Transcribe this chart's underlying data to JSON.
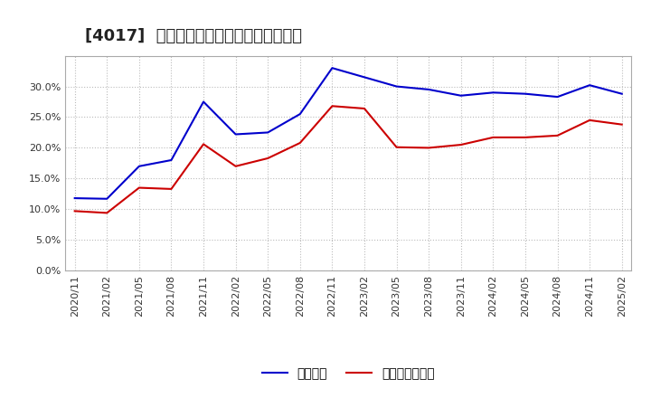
{
  "title": "[4017]  固定比率、固定長期適合率の推移",
  "x_labels": [
    "2020/11",
    "2021/02",
    "2021/05",
    "2021/08",
    "2021/11",
    "2022/02",
    "2022/05",
    "2022/08",
    "2022/11",
    "2023/02",
    "2023/05",
    "2023/08",
    "2023/11",
    "2024/02",
    "2024/05",
    "2024/08",
    "2024/11",
    "2025/02"
  ],
  "fixed_ratio": [
    11.8,
    11.7,
    17.0,
    18.0,
    27.5,
    22.2,
    22.5,
    25.5,
    33.0,
    31.5,
    30.0,
    29.5,
    28.5,
    29.0,
    28.8,
    28.3,
    30.2,
    28.8
  ],
  "fixed_long_ratio": [
    9.7,
    9.4,
    13.5,
    13.3,
    20.6,
    17.0,
    18.3,
    20.8,
    26.8,
    26.4,
    20.1,
    20.0,
    20.5,
    21.7,
    21.7,
    22.0,
    24.5,
    23.8
  ],
  "line1_color": "#0000cc",
  "line2_color": "#cc0000",
  "legend1": "固定比率",
  "legend2": "固定長期適合率",
  "ylim": [
    0.0,
    35.0
  ],
  "yticks": [
    0.0,
    5.0,
    10.0,
    15.0,
    20.0,
    25.0,
    30.0
  ],
  "bg_color": "#ffffff",
  "plot_bg_color": "#ffffff",
  "grid_color": "#bbbbbb",
  "title_fontsize": 13,
  "axis_fontsize": 8,
  "legend_fontsize": 10
}
